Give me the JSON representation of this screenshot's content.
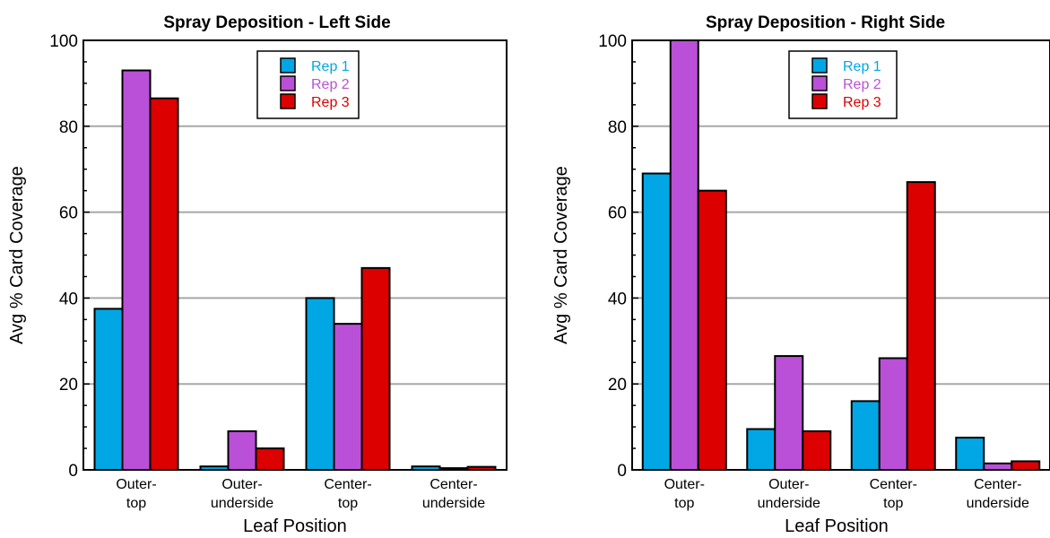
{
  "chart_data": [
    {
      "type": "bar",
      "title": "Spray Deposition - Left Side",
      "xlabel": "Leaf Position",
      "ylabel": "Avg % Card Coverage",
      "categories": [
        [
          "Outer-",
          "top"
        ],
        [
          "Outer-",
          "underside"
        ],
        [
          "Center-",
          "top"
        ],
        [
          "Center-",
          "underside"
        ]
      ],
      "ylim": [
        0,
        100
      ],
      "yticks": [
        0,
        20,
        40,
        60,
        80,
        100
      ],
      "grid": true,
      "legend_position": "top-center",
      "series": [
        {
          "name": "Rep 1",
          "color": "#00a7e4",
          "values": [
            37.5,
            0.8,
            40,
            0.8
          ]
        },
        {
          "name": "Rep 2",
          "color": "#bb50d8",
          "values": [
            93,
            9,
            34,
            0.4
          ]
        },
        {
          "name": "Rep 3",
          "color": "#dc0000",
          "values": [
            86.5,
            5,
            47,
            0.7
          ]
        }
      ]
    },
    {
      "type": "bar",
      "title": "Spray Deposition - Right Side",
      "xlabel": "Leaf Position",
      "ylabel": "Avg % Card Coverage",
      "categories": [
        [
          "Outer-",
          "top"
        ],
        [
          "Outer-",
          "underside"
        ],
        [
          "Center-",
          "top"
        ],
        [
          "Center-",
          "underside"
        ]
      ],
      "ylim": [
        0,
        100
      ],
      "yticks": [
        0,
        20,
        40,
        60,
        80,
        100
      ],
      "grid": true,
      "legend_position": "top-center",
      "series": [
        {
          "name": "Rep 1",
          "color": "#00a7e4",
          "values": [
            69,
            9.5,
            16,
            7.5
          ]
        },
        {
          "name": "Rep 2",
          "color": "#bb50d8",
          "values": [
            100,
            26.5,
            26,
            1.5
          ]
        },
        {
          "name": "Rep 3",
          "color": "#dc0000",
          "values": [
            65,
            9,
            67,
            2
          ]
        }
      ]
    }
  ]
}
